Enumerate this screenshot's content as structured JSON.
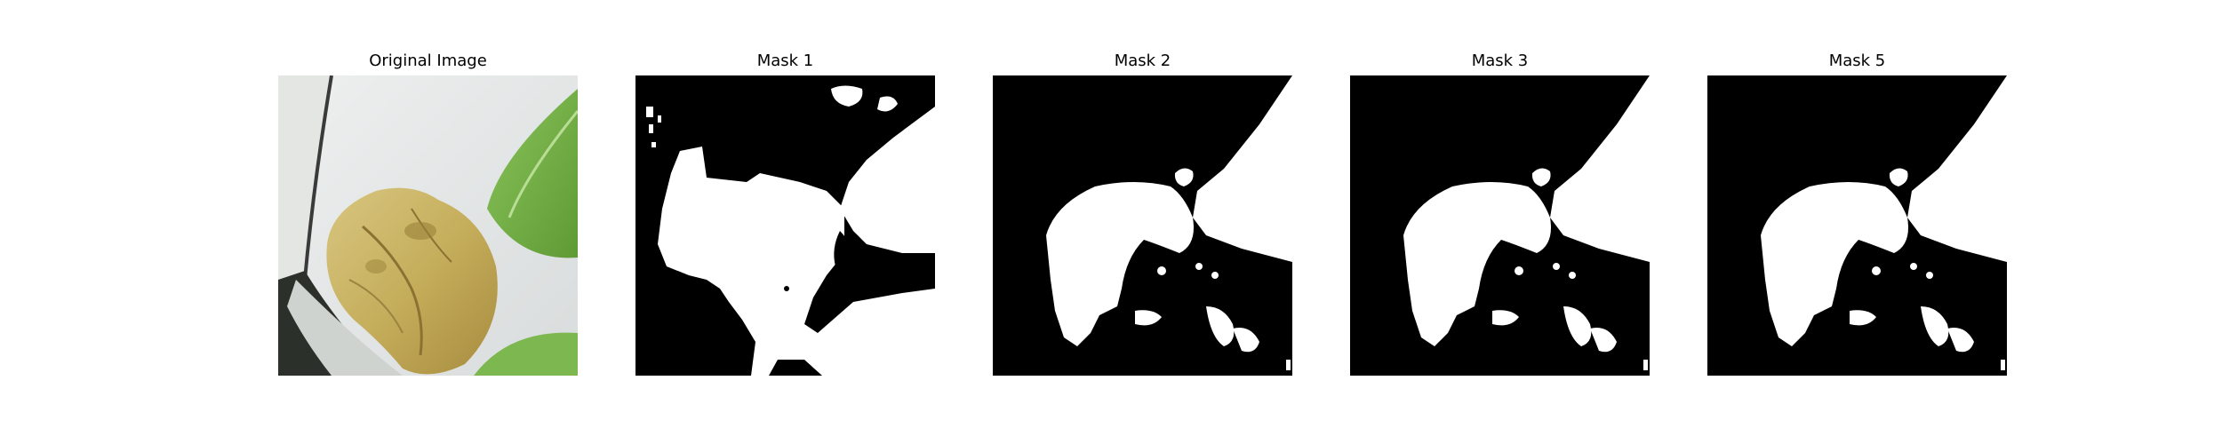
{
  "figure": {
    "panels": [
      {
        "title": "Original Image",
        "kind": "photo"
      },
      {
        "title": "Mask 1",
        "kind": "mask"
      },
      {
        "title": "Mask 2",
        "kind": "mask"
      },
      {
        "title": "Mask 3",
        "kind": "mask"
      },
      {
        "title": "Mask 5",
        "kind": "mask"
      }
    ]
  },
  "colors": {
    "mask_background": "#000000",
    "mask_foreground": "#ffffff"
  }
}
